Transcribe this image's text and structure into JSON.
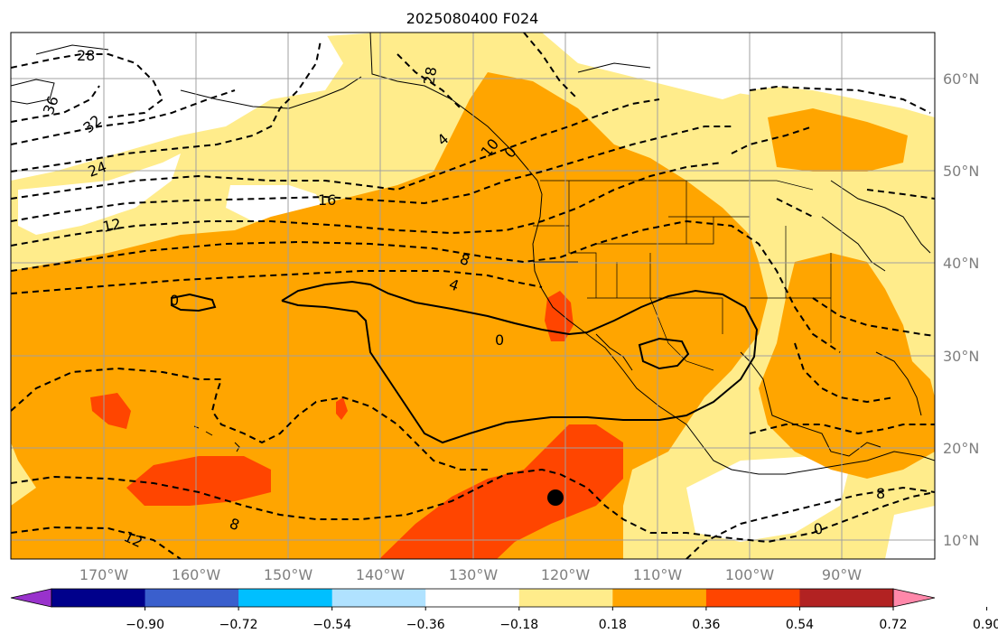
{
  "title": "2025080400 F024",
  "longitude_labels": [
    "170°W",
    "160°W",
    "150°W",
    "140°W",
    "130°W",
    "120°W",
    "110°W",
    "100°W",
    "90°W"
  ],
  "latitude_labels": [
    "60°N",
    "50°N",
    "40°N",
    "30°N",
    "20°N",
    "10°N"
  ],
  "colorbar": {
    "colors": [
      "#9932cc",
      "#00008b",
      "#3a5fcd",
      "#00bfff",
      "#b0e2ff",
      "#ffffff",
      "#ffec8b",
      "#ffa500",
      "#ff4500",
      "#b22222",
      "#ff88aa"
    ],
    "tick_labels": [
      "−0.90",
      "−0.72",
      "−0.54",
      "−0.36",
      "−0.18",
      "0.18",
      "0.36",
      "0.54",
      "0.72",
      "0.90"
    ]
  },
  "contour_labels": [
    "28",
    "36",
    "32",
    "24",
    "28",
    "16",
    "12",
    "8",
    "4",
    "0",
    "0",
    "0",
    "8",
    "12",
    "4",
    "10",
    "0",
    "8"
  ],
  "colors": {
    "level_018_036": "#ffec8b",
    "level_036_054": "#ffa500",
    "level_054_072": "#ff4500",
    "grid": "#a0a0a0",
    "label": "#7f7f7f"
  }
}
